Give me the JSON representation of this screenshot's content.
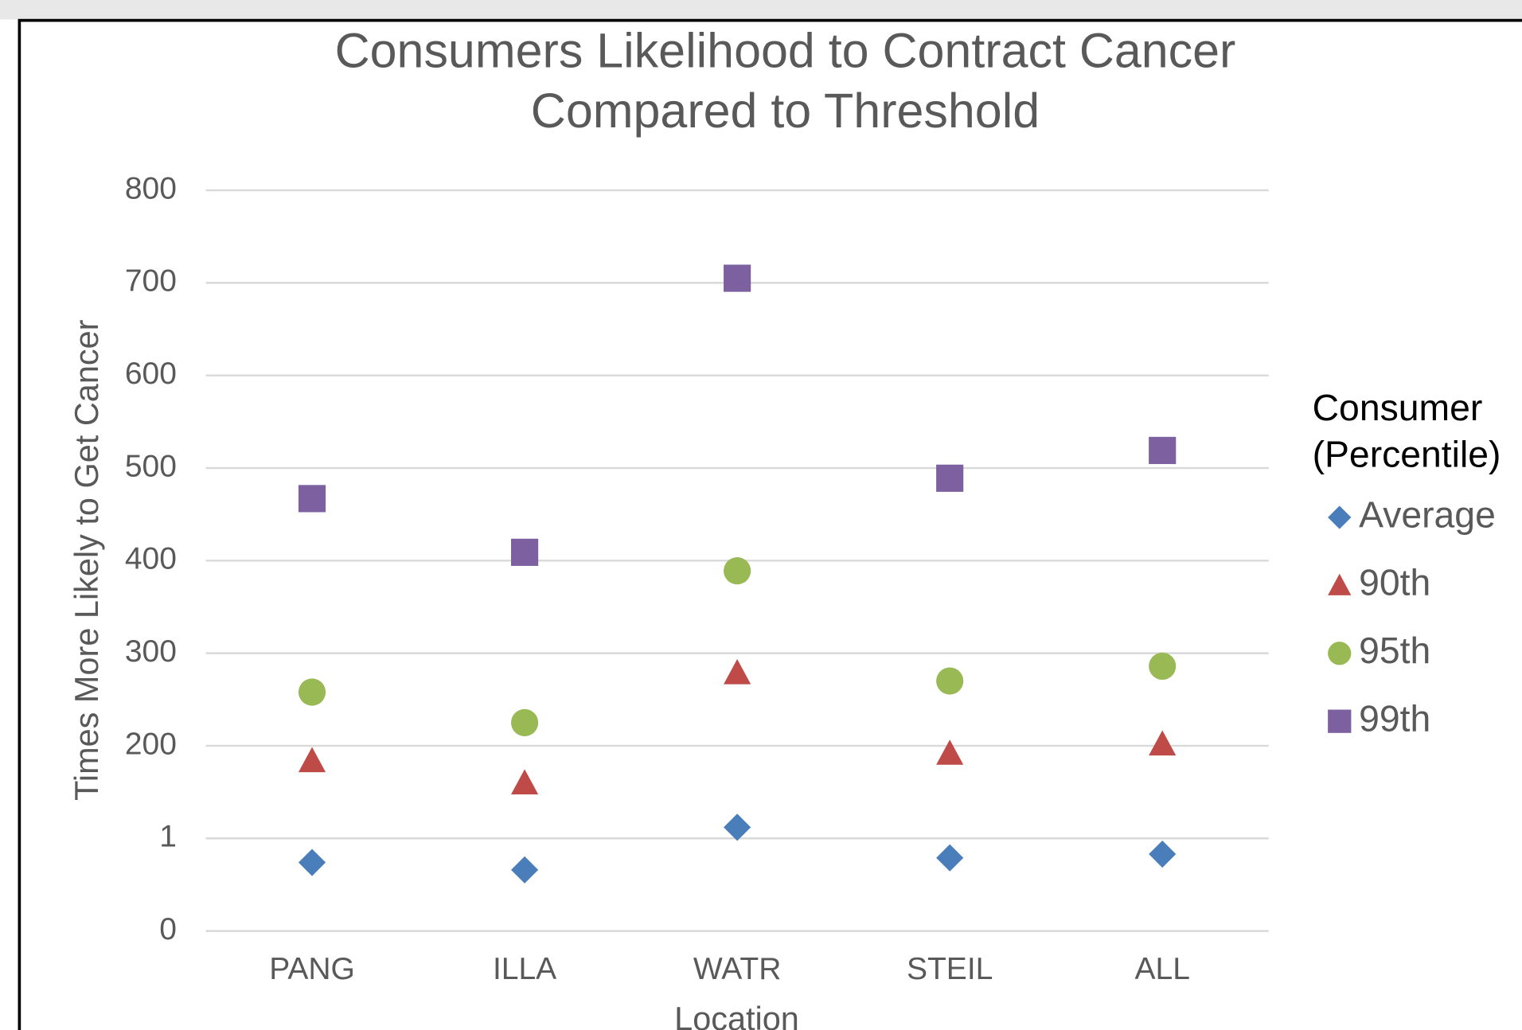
{
  "chart_data": {
    "type": "scatter",
    "title": [
      "Consumers Likelihood to Contract Cancer",
      "Compared to Threshold"
    ],
    "x_label": "Location",
    "y_label": "Times  More Likely to Get Cancer",
    "categories": [
      "PANG",
      "ILLA",
      "WATR",
      "STEIL",
      "ALL"
    ],
    "ylim": [
      0,
      800
    ],
    "yticks": [
      0,
      {
        "value": 100,
        "label": "1"
      },
      200,
      300,
      400,
      500,
      600,
      700,
      800
    ],
    "grid": true,
    "legend_title": [
      "Consumer",
      "(Percentile)"
    ],
    "legend_position": "right",
    "series": [
      {
        "name": "Average",
        "color": "#4a7ebb",
        "marker": "diamond",
        "values": [
          74,
          66,
          112,
          79,
          83
        ]
      },
      {
        "name": "90th",
        "color": "#be4b48",
        "marker": "triangle",
        "values": [
          184,
          160,
          279,
          192,
          202
        ]
      },
      {
        "name": "95th",
        "color": "#98b954",
        "marker": "circle",
        "values": [
          258,
          225,
          389,
          270,
          286
        ]
      },
      {
        "name": "99th",
        "color": "#7d60a0",
        "marker": "square",
        "values": [
          467,
          409,
          705,
          489,
          519
        ]
      }
    ]
  }
}
